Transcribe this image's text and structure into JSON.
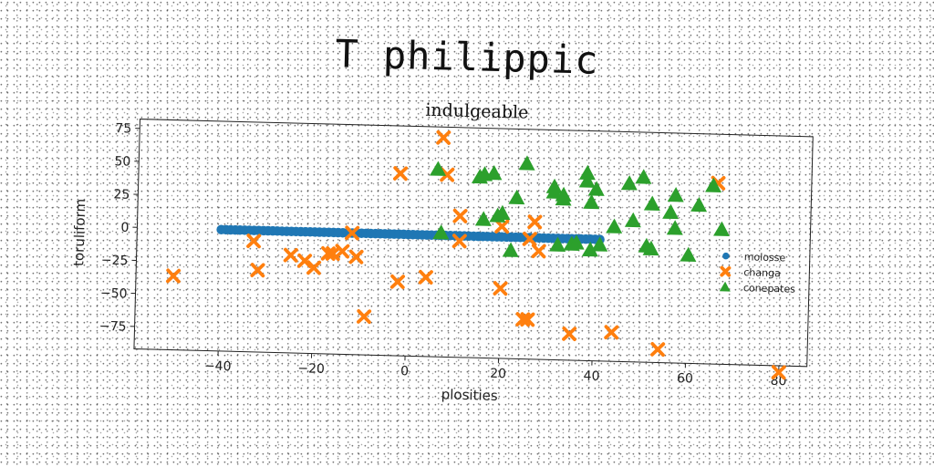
{
  "title": "T philippic",
  "chart_data": {
    "type": "scatter",
    "subtitle": "indulgeable",
    "xlabel": "plosities",
    "ylabel": "toruliform",
    "xlim": [
      -58,
      86
    ],
    "ylim": [
      -92,
      82
    ],
    "xticks": [
      -40,
      -20,
      0,
      20,
      40,
      60,
      80
    ],
    "xtick_labels": [
      "−40",
      "−20",
      "0",
      "20",
      "40",
      "60",
      "80"
    ],
    "yticks": [
      75,
      50,
      25,
      0,
      -25,
      -50,
      -75
    ],
    "ytick_labels": [
      "75",
      "50",
      "25",
      "0",
      "−25",
      "−50",
      "−75"
    ],
    "grid": false,
    "legend_position": "right",
    "series": [
      {
        "name": "molosse",
        "marker": "circle",
        "color": "#1f77b4",
        "x": [
          -40,
          -39,
          -38,
          -37,
          -36,
          -35,
          -34,
          -33,
          -32,
          -31,
          -30,
          -29,
          -28,
          -27,
          -26,
          -25,
          -24,
          -23,
          -22,
          -21,
          -20,
          -19,
          -18,
          -17,
          -16,
          -15,
          -14,
          -13,
          -12,
          -11,
          -10,
          -9,
          -8,
          -7,
          -6,
          -5,
          -4,
          -3,
          -2,
          -1,
          0,
          1,
          2,
          3,
          4,
          5,
          6,
          7,
          8,
          9,
          10,
          11,
          12,
          13,
          14,
          15,
          16,
          17,
          18,
          19,
          20,
          21,
          22,
          23,
          24,
          25,
          26,
          27,
          28,
          29,
          30,
          31,
          32,
          33,
          34,
          35,
          36,
          37,
          38,
          39,
          40,
          41
        ],
        "y": [
          0,
          0,
          0,
          0,
          0,
          0,
          0,
          0,
          0,
          0,
          0,
          0,
          0,
          0,
          0,
          0,
          0,
          0,
          0,
          0,
          0,
          0,
          0,
          0,
          0,
          0,
          0,
          0,
          0,
          0,
          0,
          0,
          0,
          0,
          0,
          0,
          0,
          0,
          0,
          0,
          0,
          0,
          0,
          0,
          0,
          0,
          0,
          0,
          0,
          0,
          0,
          0,
          0,
          0,
          0,
          0,
          0,
          0,
          0,
          0,
          0,
          0,
          0,
          0,
          0,
          0,
          0,
          0,
          0,
          0,
          0,
          0,
          0,
          0,
          0,
          0,
          0,
          0,
          0,
          0,
          0,
          0
        ]
      },
      {
        "name": "changa",
        "marker": "x",
        "color": "#ff7f0e",
        "x": [
          -50,
          -33,
          -32,
          -25,
          -22,
          -20,
          -17,
          -16,
          -14,
          -12,
          -11,
          -9,
          -2,
          -2,
          4,
          7,
          8,
          11,
          11,
          20,
          20,
          25,
          26,
          26,
          27,
          28,
          35,
          44,
          54,
          66,
          80
        ],
        "y": [
          -36,
          -8,
          -30,
          -18,
          -22,
          -27,
          -16,
          -16,
          -14,
          0,
          -18,
          -63,
          -36,
          46,
          -32,
          74,
          46,
          15,
          -4,
          8,
          -39,
          -62,
          -62,
          -1,
          12,
          -10,
          -72,
          -70,
          -82,
          45,
          -97
        ]
      },
      {
        "name": "conepates",
        "marker": "triangle",
        "color": "#2ca02c",
        "x": [
          6,
          7,
          15,
          16,
          16,
          18,
          19,
          20,
          22,
          23,
          25,
          31,
          31,
          32,
          33,
          33,
          35,
          36,
          38,
          38,
          39,
          39,
          40,
          41,
          44,
          47,
          48,
          50,
          51,
          52,
          52,
          56,
          57,
          57,
          60,
          62,
          65,
          67
        ],
        "y": [
          50,
          2,
          45,
          47,
          13,
          48,
          16,
          18,
          -10,
          30,
          56,
          39,
          35,
          -5,
          33,
          30,
          -4,
          -3,
          44,
          50,
          -8,
          28,
          38,
          -4,
          10,
          43,
          15,
          48,
          -4,
          28,
          -6,
          22,
          10,
          35,
          -10,
          28,
          43,
          10
        ]
      }
    ]
  }
}
